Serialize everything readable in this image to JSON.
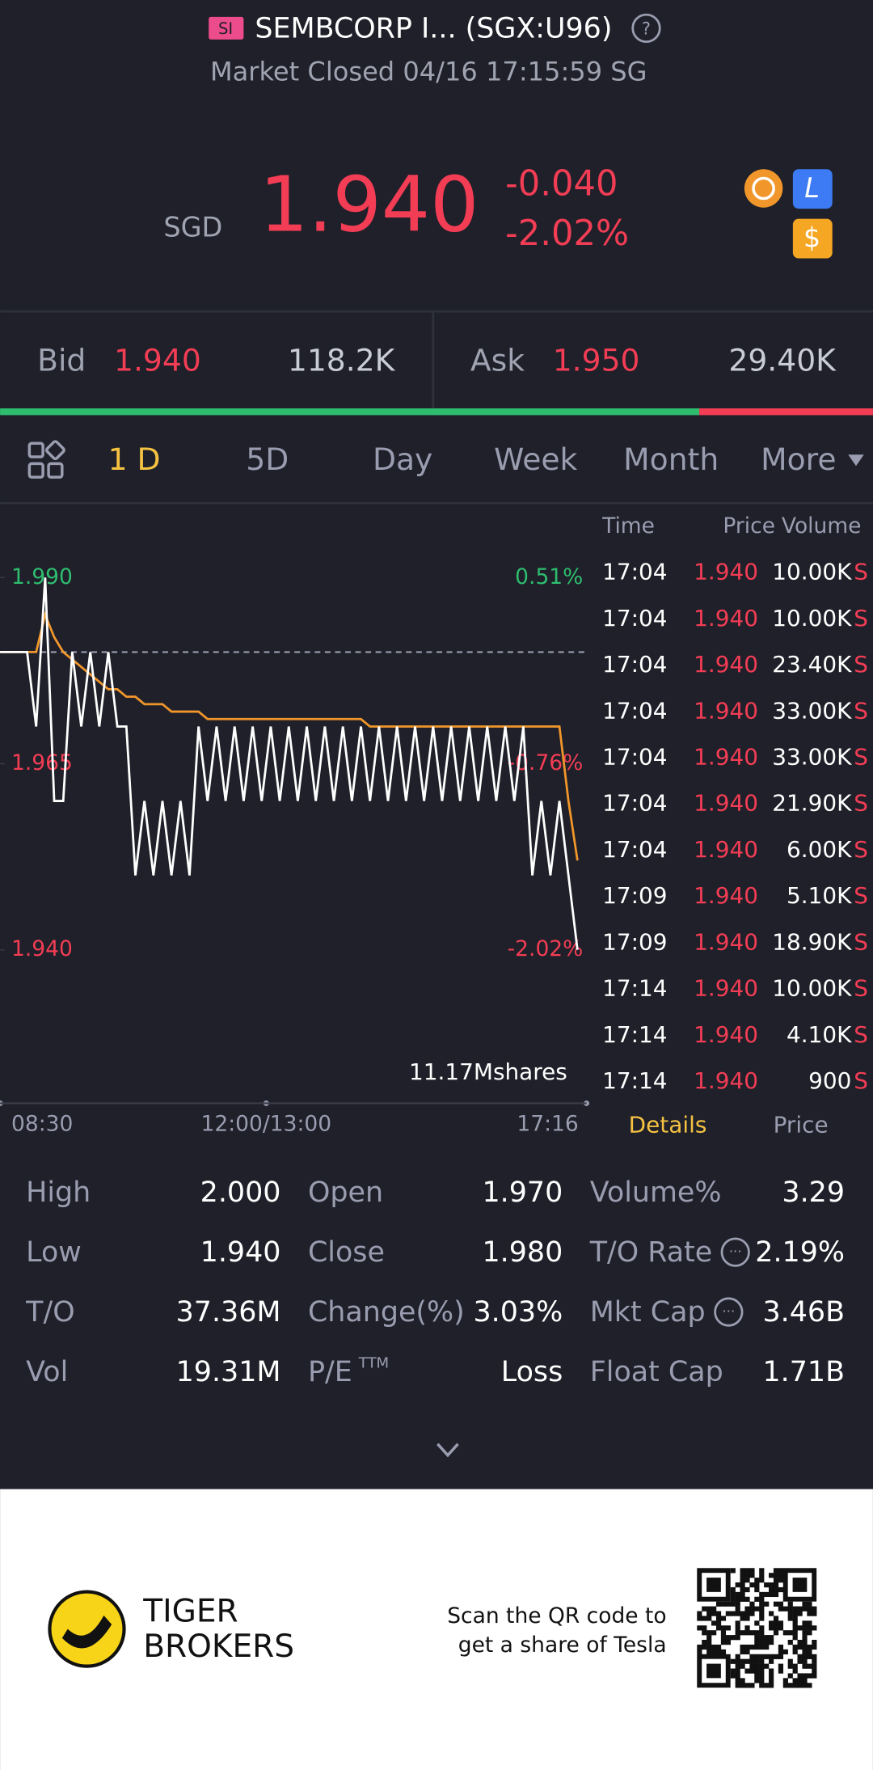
{
  "header": {
    "badge": "SI",
    "title": "SEMBCORP I... (SGX:U96)",
    "status": "Market Closed 04/16 17:15:59 SG"
  },
  "quote": {
    "currency": "SGD",
    "price": "1.940",
    "change": "-0.040",
    "change_pct": "-2.02%"
  },
  "bid_ask": {
    "bid_label": "Bid",
    "bid": "1.940",
    "bid_size": "118.2K",
    "ask_label": "Ask",
    "ask": "1.950",
    "ask_size": "29.40K"
  },
  "tabs": [
    "1 D",
    "5D",
    "Day",
    "Week",
    "Month",
    "More"
  ],
  "chart": {
    "ylim": [
      1.94,
      1.99
    ],
    "yticks": [
      {
        "value": 1.99,
        "label": "1.990"
      },
      {
        "value": 1.965,
        "label": "1.965"
      },
      {
        "value": 1.94,
        "label": "1.940"
      }
    ],
    "pct_labels": [
      "0.51%",
      "-0.76%",
      "-2.02%"
    ],
    "prev_close": 1.98,
    "volume_label": "11.17Mshares",
    "x_labels": [
      "08:30",
      "12:00/13:00",
      "17:16"
    ],
    "price": [
      1.98,
      1.98,
      1.98,
      1.98,
      1.97,
      1.99,
      1.96,
      1.96,
      1.98,
      1.97,
      1.98,
      1.97,
      1.98,
      1.97,
      1.97,
      1.95,
      1.96,
      1.95,
      1.96,
      1.95,
      1.96,
      1.95,
      1.97,
      1.96,
      1.97,
      1.96,
      1.97,
      1.96,
      1.97,
      1.96,
      1.97,
      1.96,
      1.97,
      1.96,
      1.97,
      1.96,
      1.97,
      1.96,
      1.97,
      1.96,
      1.97,
      1.96,
      1.97,
      1.96,
      1.97,
      1.96,
      1.97,
      1.96,
      1.97,
      1.96,
      1.97,
      1.96,
      1.97,
      1.96,
      1.97,
      1.96,
      1.97,
      1.96,
      1.97,
      1.95,
      1.96,
      1.95,
      1.96,
      1.95,
      1.94
    ],
    "average": [
      1.98,
      1.98,
      1.98,
      1.98,
      1.98,
      1.985,
      1.982,
      1.98,
      1.979,
      1.978,
      1.977,
      1.976,
      1.975,
      1.975,
      1.974,
      1.974,
      1.973,
      1.973,
      1.973,
      1.972,
      1.972,
      1.972,
      1.972,
      1.971,
      1.971,
      1.971,
      1.971,
      1.971,
      1.971,
      1.971,
      1.971,
      1.971,
      1.971,
      1.971,
      1.971,
      1.971,
      1.971,
      1.971,
      1.971,
      1.971,
      1.971,
      1.97,
      1.97,
      1.97,
      1.97,
      1.97,
      1.97,
      1.97,
      1.97,
      1.97,
      1.97,
      1.97,
      1.97,
      1.97,
      1.97,
      1.97,
      1.97,
      1.97,
      1.97,
      1.97,
      1.97,
      1.97,
      1.97,
      1.96,
      1.952
    ]
  },
  "trades": {
    "headers": [
      "Time",
      "Price",
      "Volume"
    ],
    "rows": [
      [
        "17:04",
        "1.940",
        "10.00K",
        "S"
      ],
      [
        "17:04",
        "1.940",
        "10.00K",
        "S"
      ],
      [
        "17:04",
        "1.940",
        "23.40K",
        "S"
      ],
      [
        "17:04",
        "1.940",
        "33.00K",
        "S"
      ],
      [
        "17:04",
        "1.940",
        "33.00K",
        "S"
      ],
      [
        "17:04",
        "1.940",
        "21.90K",
        "S"
      ],
      [
        "17:04",
        "1.940",
        "6.00K",
        "S"
      ],
      [
        "17:09",
        "1.940",
        "5.10K",
        "S"
      ],
      [
        "17:09",
        "1.940",
        "18.90K",
        "S"
      ],
      [
        "17:14",
        "1.940",
        "10.00K",
        "S"
      ],
      [
        "17:14",
        "1.940",
        "4.10K",
        "S"
      ],
      [
        "17:14",
        "1.940",
        "900",
        "S"
      ]
    ]
  },
  "trade_tabs": [
    "Details",
    "Price"
  ],
  "stats": [
    [
      [
        "High",
        "2.000"
      ],
      [
        "Open",
        "1.970"
      ],
      [
        "Volume%",
        "3.29"
      ]
    ],
    [
      [
        "Low",
        "1.940"
      ],
      [
        "Close",
        "1.980"
      ],
      [
        "T/O Rate",
        "2.19%"
      ]
    ],
    [
      [
        "T/O",
        "37.36M"
      ],
      [
        "Change(%)",
        "3.03%"
      ],
      [
        "Mkt Cap",
        "3.46B"
      ]
    ],
    [
      [
        "Vol",
        "19.31M"
      ],
      [
        "P/E",
        "Loss"
      ],
      [
        "Float Cap",
        "1.71B"
      ]
    ]
  ],
  "pe_superscript": "TTM",
  "footer": {
    "brand": [
      "TIGER",
      "BROKERS"
    ],
    "promo": [
      "Scan the QR code to",
      "get a share of Tesla"
    ]
  }
}
